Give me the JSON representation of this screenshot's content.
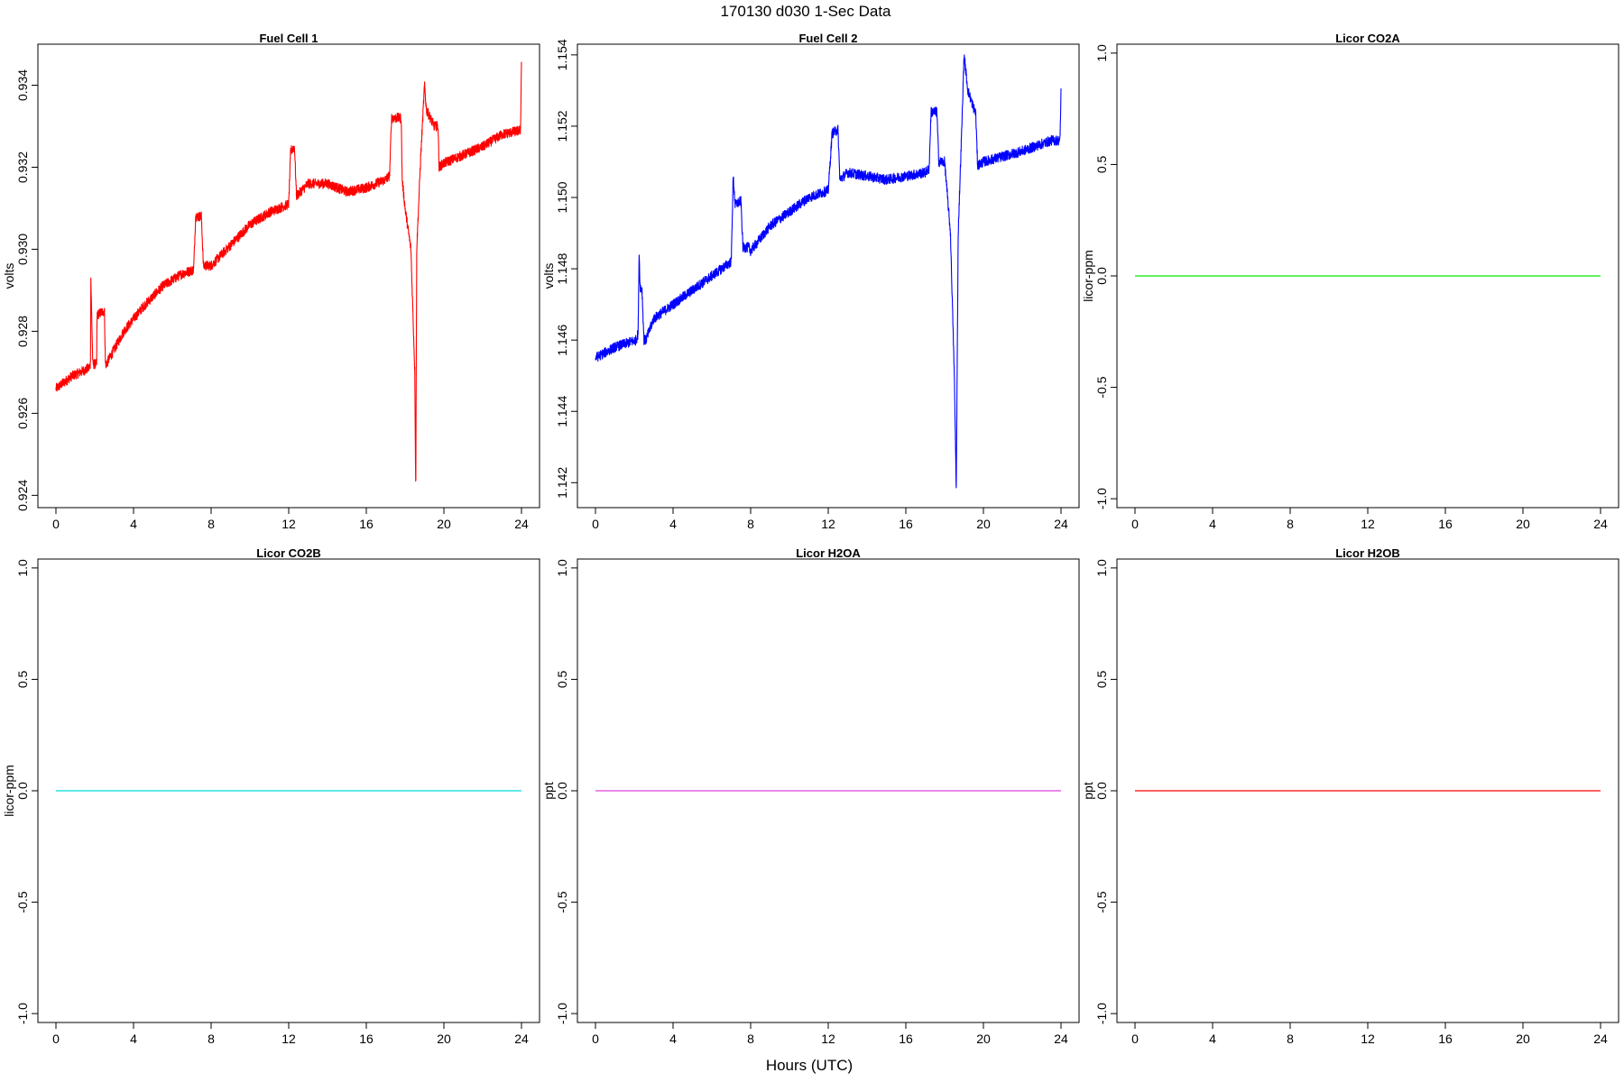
{
  "figure": {
    "title": "170130   d030   1-Sec Data",
    "xlabel": "Hours (UTC)"
  },
  "chart_data": [
    {
      "type": "line",
      "title": "Fuel Cell 1",
      "ylabel": "volts",
      "color": "#ff0000",
      "xlim": [
        0,
        24
      ],
      "ylim": [
        0.9237,
        0.935
      ],
      "xticks": [
        0,
        4,
        8,
        12,
        16,
        20,
        24
      ],
      "yticks": [
        0.924,
        0.926,
        0.928,
        0.93,
        0.932,
        0.934
      ],
      "ytick_labels": [
        "0.924",
        "0.926",
        "0.928",
        "0.930",
        "0.932",
        "0.934"
      ],
      "noise": 0.00012,
      "series": [
        {
          "x": [
            0.0,
            0.8,
            1.7,
            1.78,
            1.8,
            1.9,
            2.0,
            2.1,
            2.12,
            2.5,
            2.55,
            2.6,
            3.5,
            4.5,
            5.5,
            6.5,
            7.1,
            7.2,
            7.5,
            7.6,
            7.9,
            8.0,
            9.0,
            10.0,
            11.0,
            12.0,
            12.1,
            12.3,
            12.4,
            13.0,
            14.0,
            15.0,
            16.0,
            17.0,
            17.2,
            17.3,
            17.8,
            17.85,
            18.0,
            18.3,
            18.5,
            18.55,
            18.6,
            18.8,
            19.0,
            19.1,
            19.5,
            19.7,
            19.75,
            20.0,
            22.0,
            23.0,
            23.95,
            24.0
          ],
          "y": [
            0.9266,
            0.9269,
            0.9271,
            0.9272,
            0.9293,
            0.9272,
            0.9272,
            0.9272,
            0.9284,
            0.9285,
            0.9272,
            0.9272,
            0.928,
            0.9286,
            0.9291,
            0.9294,
            0.9295,
            0.9308,
            0.9308,
            0.9296,
            0.9296,
            0.9296,
            0.9301,
            0.9306,
            0.9309,
            0.9311,
            0.9324,
            0.9325,
            0.9313,
            0.9316,
            0.9316,
            0.9314,
            0.9315,
            0.9317,
            0.9318,
            0.9332,
            0.9332,
            0.9317,
            0.931,
            0.93,
            0.927,
            0.924,
            0.93,
            0.9322,
            0.934,
            0.9334,
            0.933,
            0.933,
            0.932,
            0.9321,
            0.9325,
            0.9328,
            0.9329,
            0.9346
          ]
        }
      ]
    },
    {
      "type": "line",
      "title": "Fuel Cell 2",
      "ylabel": "volts",
      "color": "#0000ff",
      "xlim": [
        0,
        24
      ],
      "ylim": [
        1.1413,
        1.1543
      ],
      "xticks": [
        0,
        4,
        8,
        12,
        16,
        20,
        24
      ],
      "yticks": [
        1.142,
        1.144,
        1.146,
        1.148,
        1.15,
        1.152,
        1.154
      ],
      "ytick_labels": [
        "1.142",
        "1.144",
        "1.146",
        "1.148",
        "1.150",
        "1.152",
        "1.154"
      ],
      "noise": 0.00014,
      "series": [
        {
          "x": [
            0.0,
            1.0,
            2.1,
            2.2,
            2.25,
            2.3,
            2.4,
            2.5,
            2.6,
            3.0,
            4.0,
            5.0,
            6.0,
            7.0,
            7.1,
            7.2,
            7.5,
            7.6,
            7.9,
            8.0,
            9.0,
            10.0,
            11.0,
            12.0,
            12.2,
            12.5,
            12.6,
            13.0,
            14.0,
            15.0,
            16.0,
            17.0,
            17.2,
            17.3,
            17.6,
            17.7,
            18.0,
            18.3,
            18.5,
            18.6,
            18.7,
            18.9,
            19.0,
            19.2,
            19.5,
            19.6,
            19.7,
            20.0,
            22.0,
            23.5,
            23.95,
            24.0
          ],
          "y": [
            1.1455,
            1.1458,
            1.146,
            1.1462,
            1.1485,
            1.1475,
            1.1474,
            1.146,
            1.146,
            1.1466,
            1.147,
            1.1474,
            1.1478,
            1.1482,
            1.1506,
            1.1498,
            1.1499,
            1.1486,
            1.1486,
            1.1485,
            1.1492,
            1.1496,
            1.15,
            1.1502,
            1.1518,
            1.1519,
            1.1505,
            1.1507,
            1.1506,
            1.1505,
            1.1506,
            1.1507,
            1.1508,
            1.1524,
            1.1524,
            1.151,
            1.151,
            1.149,
            1.145,
            1.1418,
            1.149,
            1.1522,
            1.154,
            1.153,
            1.1525,
            1.1524,
            1.1509,
            1.151,
            1.1513,
            1.1516,
            1.1516,
            1.153
          ]
        }
      ]
    },
    {
      "type": "line",
      "title": "Licor CO2A",
      "ylabel": "licor-ppm",
      "color": "#00ee00",
      "xlim": [
        0,
        24
      ],
      "ylim": [
        -1.04,
        1.04
      ],
      "xticks": [
        0,
        4,
        8,
        12,
        16,
        20,
        24
      ],
      "yticks": [
        -1.0,
        -0.5,
        0.0,
        0.5,
        1.0
      ],
      "ytick_labels": [
        "-1.0",
        "-0.5",
        "0.0",
        "0.5",
        "1.0"
      ],
      "noise": 0,
      "series": [
        {
          "x": [
            0,
            24
          ],
          "y": [
            0,
            0
          ]
        }
      ]
    },
    {
      "type": "line",
      "title": "Licor CO2B",
      "ylabel": "licor-ppm",
      "color": "#00dddd",
      "xlim": [
        0,
        24
      ],
      "ylim": [
        -1.04,
        1.04
      ],
      "xticks": [
        0,
        4,
        8,
        12,
        16,
        20,
        24
      ],
      "yticks": [
        -1.0,
        -0.5,
        0.0,
        0.5,
        1.0
      ],
      "ytick_labels": [
        "-1.0",
        "-0.5",
        "0.0",
        "0.5",
        "1.0"
      ],
      "noise": 0,
      "series": [
        {
          "x": [
            0,
            24
          ],
          "y": [
            0,
            0
          ]
        }
      ]
    },
    {
      "type": "line",
      "title": "Licor H2OA",
      "ylabel": "ppt",
      "color": "#dd44dd",
      "xlim": [
        0,
        24
      ],
      "ylim": [
        -1.04,
        1.04
      ],
      "xticks": [
        0,
        4,
        8,
        12,
        16,
        20,
        24
      ],
      "yticks": [
        -1.0,
        -0.5,
        0.0,
        0.5,
        1.0
      ],
      "ytick_labels": [
        "-1.0",
        "-0.5",
        "0.0",
        "0.5",
        "1.0"
      ],
      "noise": 0,
      "series": [
        {
          "x": [
            0,
            24
          ],
          "y": [
            0,
            0
          ]
        }
      ]
    },
    {
      "type": "line",
      "title": "Licor H2OB",
      "ylabel": "ppt",
      "color": "#ff0000",
      "xlim": [
        0,
        24
      ],
      "ylim": [
        -1.04,
        1.04
      ],
      "xticks": [
        0,
        4,
        8,
        12,
        16,
        20,
        24
      ],
      "yticks": [
        -1.0,
        -0.5,
        0.0,
        0.5,
        1.0
      ],
      "ytick_labels": [
        "-1.0",
        "-0.5",
        "0.0",
        "0.5",
        "1.0"
      ],
      "noise": 0,
      "series": [
        {
          "x": [
            0,
            24
          ],
          "y": [
            0,
            0
          ]
        }
      ]
    }
  ]
}
